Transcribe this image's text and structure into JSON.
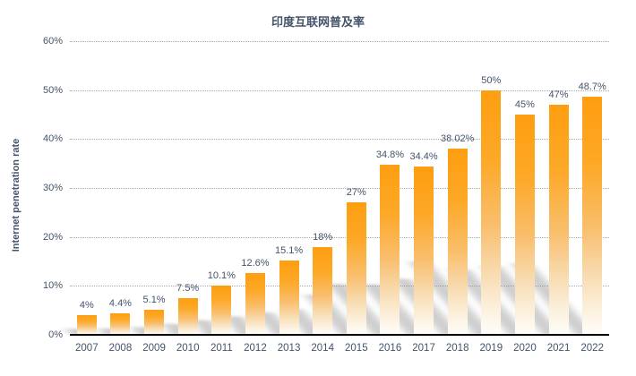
{
  "chart_data": {
    "type": "bar",
    "title": "印度互联网普及率",
    "xlabel": "",
    "ylabel": "Internet penetration rate",
    "categories": [
      "2007",
      "2008",
      "2009",
      "2010",
      "2011",
      "2012",
      "2013",
      "2014",
      "2015",
      "2016",
      "2017",
      "2018",
      "2019",
      "2020",
      "2021",
      "2022"
    ],
    "values": [
      4,
      4.4,
      5.1,
      7.5,
      10.1,
      12.6,
      15.1,
      18,
      27,
      34.8,
      34.4,
      38.02,
      50,
      45,
      47,
      48.7
    ],
    "value_labels": [
      "4%",
      "4.4%",
      "5.1%",
      "7.5%",
      "10.1%",
      "12.6%",
      "15.1%",
      "18%",
      "27%",
      "34.8%",
      "34.4%",
      "38.02%",
      "50%",
      "45%",
      "47%",
      "48.7%"
    ],
    "ylim": [
      0,
      60
    ],
    "ytick_step": 10,
    "ytick_labels": [
      "0%",
      "10%",
      "20%",
      "30%",
      "40%",
      "50%",
      "60%"
    ],
    "grid": "horizontal-dotted",
    "legend": "none",
    "colors": {
      "bar_gradient_top": "#FE9E11",
      "bar_gradient_bottom": "#FFFDFA",
      "text": "#44546A",
      "gridline": "#A9A9A9",
      "axis_line": "#000000",
      "background": "#FFFFFF",
      "bar_shadow": "rgba(128,128,128,0.38)"
    }
  }
}
